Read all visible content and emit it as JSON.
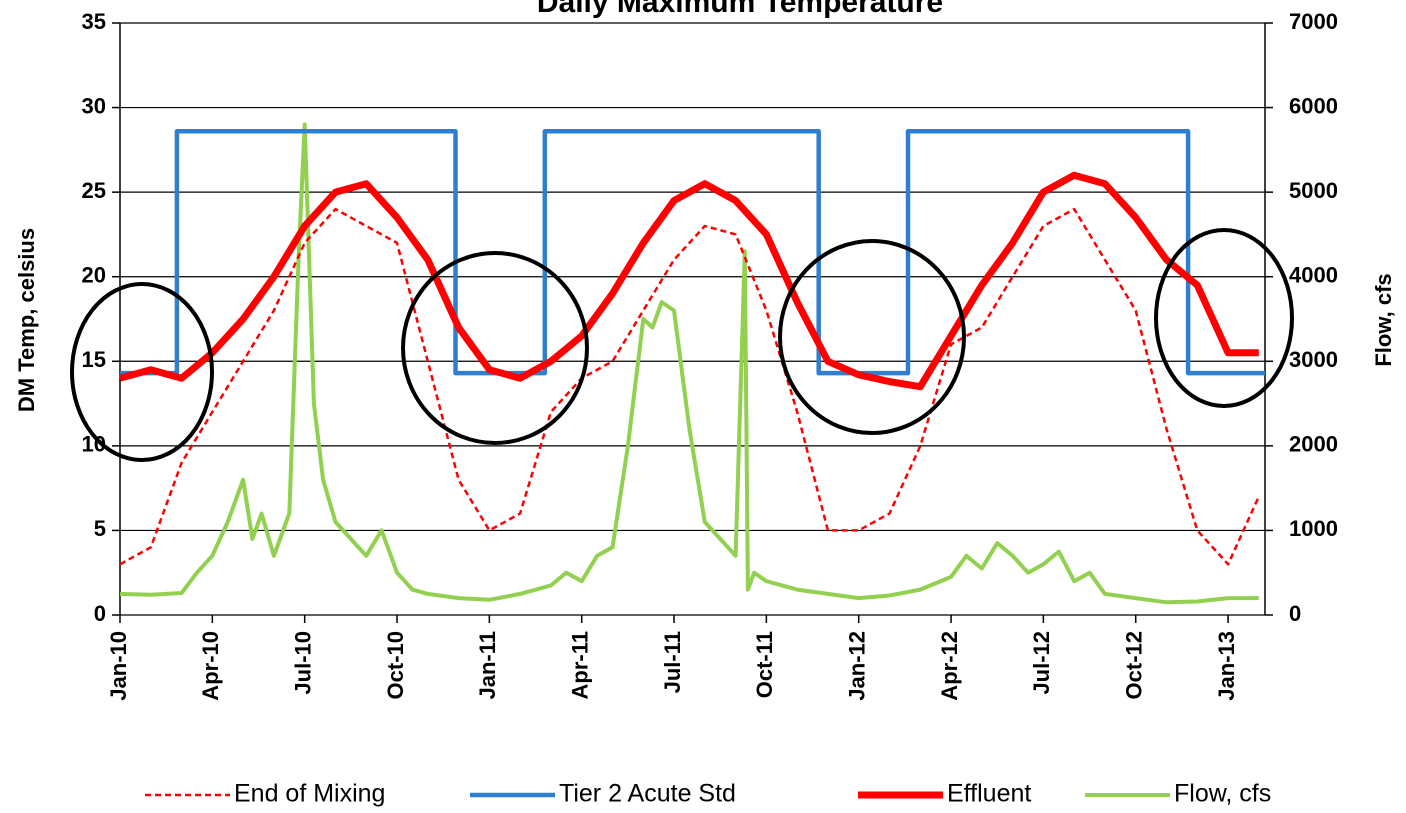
{
  "chart_data": {
    "type": "line",
    "title": "Daily Maximum Temperature",
    "y_label": "DM Temp, celsius",
    "y2_label": "Flow, cfs",
    "xlim": [
      0,
      37.2
    ],
    "xticks": [
      {
        "value": 0,
        "label": "Jan-10"
      },
      {
        "value": 3,
        "label": "Apr-10"
      },
      {
        "value": 6,
        "label": "Jul-10"
      },
      {
        "value": 9,
        "label": "Oct-10"
      },
      {
        "value": 12,
        "label": "Jan-11"
      },
      {
        "value": 15,
        "label": "Apr-11"
      },
      {
        "value": 18,
        "label": "Jul-11"
      },
      {
        "value": 21,
        "label": "Oct-11"
      },
      {
        "value": 24,
        "label": "Jan-12"
      },
      {
        "value": 27,
        "label": "Apr-12"
      },
      {
        "value": 30,
        "label": "Jul-12"
      },
      {
        "value": 33,
        "label": "Oct-12"
      },
      {
        "value": 36,
        "label": "Jan-13"
      }
    ],
    "ylim": [
      0,
      35
    ],
    "yticks": [
      0,
      5,
      10,
      15,
      20,
      25,
      30,
      35
    ],
    "y2lim": [
      0,
      7000
    ],
    "y2ticks": [
      0,
      1000,
      2000,
      3000,
      4000,
      5000,
      6000,
      7000
    ],
    "grid": true,
    "series": [
      {
        "name": "End of Mixing",
        "color": "#ff0000",
        "dashed": true,
        "x": [
          0,
          1,
          2,
          3,
          4,
          5,
          6,
          7,
          8,
          9,
          10,
          11,
          12,
          13,
          14,
          15,
          16,
          17,
          18,
          19,
          20,
          21,
          22,
          23,
          24,
          25,
          26,
          27,
          28,
          29,
          30,
          31,
          32,
          33,
          34,
          35,
          36,
          37
        ],
        "values": [
          3,
          4,
          9,
          12,
          15,
          18,
          22,
          24,
          23,
          22,
          15,
          8,
          5,
          6,
          12,
          14,
          15,
          18,
          21,
          23,
          22.5,
          18,
          12,
          5,
          5,
          6,
          10,
          16,
          17,
          20,
          23,
          24,
          21,
          18,
          11,
          5,
          3,
          7
        ]
      },
      {
        "name": "Tier 2 Acute Std",
        "color": "#2f7fd0",
        "x": [
          0,
          1.85,
          1.85,
          10.9,
          10.9,
          13.8,
          13.8,
          22.7,
          22.7,
          25.6,
          25.6,
          34.7,
          34.7,
          37.2
        ],
        "values": [
          14.3,
          14.3,
          28.6,
          28.6,
          14.3,
          14.3,
          28.6,
          28.6,
          14.3,
          14.3,
          28.6,
          28.6,
          14.3,
          14.3
        ]
      },
      {
        "name": "Effluent",
        "color": "#ff0000",
        "x": [
          0,
          1,
          2,
          3,
          4,
          5,
          6,
          7,
          8,
          9,
          10,
          11,
          12,
          13,
          14,
          15,
          16,
          17,
          18,
          19,
          20,
          21,
          22,
          23,
          24,
          25,
          26,
          27,
          28,
          29,
          30,
          31,
          32,
          33,
          34,
          35,
          36,
          37
        ],
        "values": [
          14,
          14.5,
          14,
          15.5,
          17.5,
          20,
          23,
          25,
          25.5,
          23.5,
          21,
          17,
          14.5,
          14,
          15,
          16.5,
          19,
          22,
          24.5,
          25.5,
          24.5,
          22.5,
          18.5,
          15,
          14.2,
          13.8,
          13.5,
          16.5,
          19.5,
          22,
          25,
          26,
          25.5,
          23.5,
          21,
          19.5,
          15.5,
          15.5
        ]
      },
      {
        "name": "Flow, cfs",
        "color": "#92d050",
        "axis": "y2",
        "x": [
          0,
          1,
          2,
          2.5,
          3,
          3.5,
          4,
          4.3,
          4.6,
          5,
          5.5,
          5.8,
          6,
          6.3,
          6.6,
          7,
          7.5,
          8,
          8.5,
          9,
          9.5,
          10,
          11,
          12,
          13,
          14,
          14.5,
          15,
          15.5,
          16,
          16.5,
          17,
          17.3,
          17.6,
          18,
          18.5,
          19,
          19.5,
          20,
          20.3,
          20.4,
          20.6,
          21,
          22,
          23,
          24,
          25,
          26,
          27,
          27.5,
          28,
          28.5,
          29,
          29.5,
          30,
          30.5,
          31,
          31.5,
          32,
          33,
          34,
          35,
          36,
          37
        ],
        "values": [
          250,
          240,
          260,
          500,
          700,
          1100,
          1600,
          900,
          1200,
          700,
          1200,
          4200,
          5800,
          2500,
          1600,
          1100,
          900,
          700,
          1000,
          500,
          300,
          250,
          200,
          180,
          250,
          350,
          500,
          400,
          700,
          800,
          2000,
          3500,
          3400,
          3700,
          3600,
          2200,
          1100,
          900,
          700,
          4300,
          300,
          500,
          400,
          300,
          250,
          200,
          230,
          300,
          450,
          700,
          550,
          850,
          700,
          500,
          600,
          750,
          400,
          500,
          250,
          200,
          150,
          160,
          200,
          200
        ]
      }
    ]
  }
}
